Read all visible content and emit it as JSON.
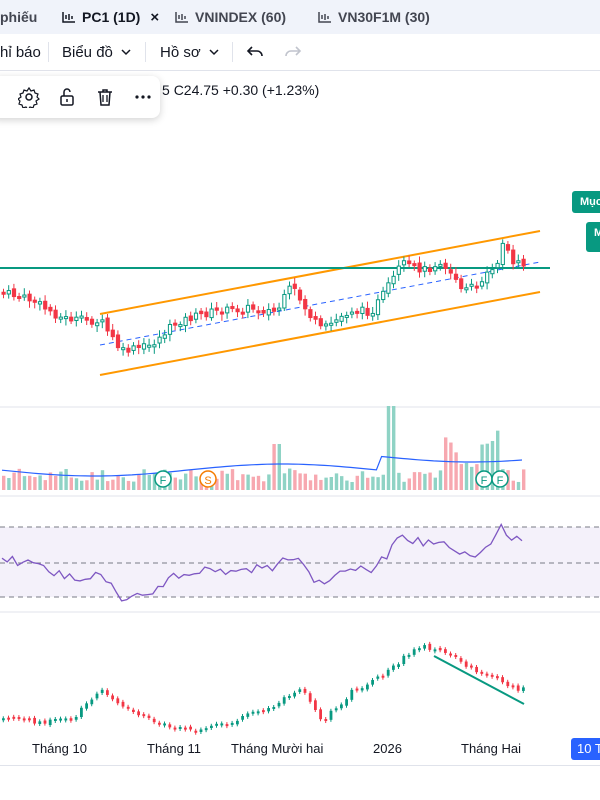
{
  "tabs": [
    {
      "label": "phiếu",
      "active": false
    },
    {
      "label": "PC1 (1D)",
      "active": true,
      "close": "×"
    },
    {
      "label": "VNINDEX (60)",
      "active": false
    },
    {
      "label": "VN30F1M (30)",
      "active": false
    }
  ],
  "toolbar": {
    "indicators_label": "hỉ báo",
    "chart_label": "Biểu đồ",
    "profile_label": "Hồ sơ"
  },
  "floating_toolbar": {
    "icons": [
      "settings-icon",
      "unlock-icon",
      "trash-icon",
      "more-icon"
    ]
  },
  "ohlc": {
    "close_text": "C24.75",
    "change_text": "+0.30 (+1.23%)",
    "prefix": "5"
  },
  "badges": {
    "top": "Mục",
    "second": "M"
  },
  "volume_markers": [
    "F",
    "S",
    "F",
    "F"
  ],
  "x_axis_labels": [
    "Tháng 10",
    "Tháng 11",
    "Tháng Mười hai",
    "2026",
    "Tháng Hai"
  ],
  "date_badge": "10 T",
  "colors": {
    "up": "#089981",
    "down": "#f23645",
    "channel": "#ff9800",
    "support": "#089981",
    "rsi_line": "#7e57c2",
    "rsi_band": "#ede7f6",
    "ma_volume": "#2962ff",
    "accent": "#2962ff"
  }
}
